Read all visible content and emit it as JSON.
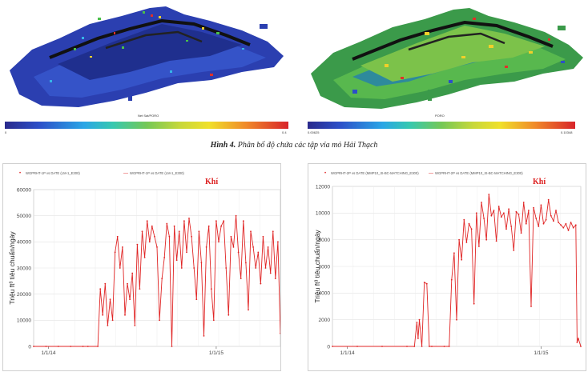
{
  "renders": {
    "left": {
      "colorbar_min": "0",
      "colorbar_max": "0.4",
      "colorbar_title": "Net Sat/PORO"
    },
    "right": {
      "colorbar_min": "0.00625",
      "colorbar_max": "0.10348",
      "colorbar_title": "PORO"
    }
  },
  "caption": {
    "label": "Hình 4.",
    "text": "Phân bố độ chứa các tập vỉa mỏ Hải Thạch"
  },
  "chart_data": [
    {
      "type": "line",
      "legend": [
        {
          "marker": "•",
          "text": "WGPRHT-1P  vs  DATE (LM-1_E300)"
        },
        {
          "marker": "—",
          "text": "WGPRHT-1P  vs  DATE (LM-1_E300)"
        }
      ],
      "annotation": "Khí",
      "ylabel": "Triệu ft³ tiêu chuẩn/ngày",
      "ylim": [
        0,
        60000
      ],
      "yticks": [
        "60000",
        "50000",
        "40000",
        "30000",
        "20000",
        "10000",
        "0"
      ],
      "xticks": [
        "1/1/14",
        "1/1/15"
      ],
      "series": [
        {
          "color": "#e02424",
          "x": [
            0,
            0.05,
            0.1,
            0.15,
            0.2,
            0.22,
            0.26,
            0.27,
            0.28,
            0.29,
            0.3,
            0.31,
            0.32,
            0.33,
            0.34,
            0.35,
            0.36,
            0.37,
            0.38,
            0.39,
            0.4,
            0.41,
            0.42,
            0.43,
            0.44,
            0.45,
            0.46,
            0.47,
            0.48,
            0.49,
            0.5,
            0.51,
            0.52,
            0.53,
            0.54,
            0.55,
            0.56,
            0.57,
            0.58,
            0.59,
            0.6,
            0.61,
            0.62,
            0.63,
            0.64,
            0.65,
            0.66,
            0.67,
            0.68,
            0.69,
            0.7,
            0.71,
            0.72,
            0.73,
            0.74,
            0.75,
            0.76,
            0.77,
            0.78,
            0.79,
            0.8,
            0.81,
            0.82,
            0.83,
            0.84,
            0.85,
            0.86,
            0.87,
            0.88,
            0.89,
            0.9,
            0.91,
            0.92,
            0.93,
            0.94,
            0.95,
            0.96,
            0.97,
            0.98,
            0.99,
            1.0
          ],
          "y": [
            0,
            0,
            0,
            0,
            0,
            0,
            0,
            22000,
            12000,
            24000,
            8000,
            18000,
            10000,
            36000,
            42000,
            30000,
            38000,
            12000,
            24000,
            18000,
            28000,
            8000,
            39000,
            22000,
            44000,
            34000,
            48000,
            40000,
            46000,
            42000,
            38000,
            10000,
            26000,
            34000,
            47000,
            42000,
            0,
            46000,
            33000,
            44000,
            30000,
            48000,
            36000,
            49000,
            42000,
            30000,
            18000,
            44000,
            32000,
            4000,
            38000,
            46000,
            22000,
            10000,
            48000,
            40000,
            46000,
            48000,
            30000,
            12000,
            42000,
            38000,
            50000,
            36000,
            26000,
            48000,
            32000,
            14000,
            44000,
            38000,
            30000,
            36000,
            24000,
            42000,
            30000,
            38000,
            28000,
            44000,
            26000,
            40000,
            5000
          ]
        }
      ]
    },
    {
      "type": "line",
      "legend": [
        {
          "marker": "•",
          "text": "WGPRHT-2P  vs  DATE (MMP10_IS-BC-MATCHING_E300)"
        },
        {
          "marker": "—",
          "text": "WGPRHT-2P  vs  DATE (MMP10_IS-BC-MATCHING_E300)"
        }
      ],
      "annotation": "Khí",
      "ylabel": "Triệu ft³ tiêu chuẩn/ngày",
      "ylim": [
        0,
        12000
      ],
      "yticks": [
        "12000",
        "10000",
        "8000",
        "6000",
        "4000",
        "2000",
        "0"
      ],
      "xticks": [
        "1/1/14",
        "1/1/15"
      ],
      "series": [
        {
          "color": "#e02424",
          "x": [
            0,
            0.1,
            0.2,
            0.3,
            0.33,
            0.34,
            0.345,
            0.35,
            0.36,
            0.37,
            0.38,
            0.39,
            0.4,
            0.45,
            0.47,
            0.48,
            0.49,
            0.5,
            0.51,
            0.52,
            0.53,
            0.54,
            0.55,
            0.56,
            0.57,
            0.58,
            0.59,
            0.6,
            0.61,
            0.62,
            0.63,
            0.64,
            0.65,
            0.66,
            0.67,
            0.68,
            0.69,
            0.7,
            0.71,
            0.72,
            0.73,
            0.74,
            0.75,
            0.76,
            0.77,
            0.78,
            0.79,
            0.8,
            0.81,
            0.82,
            0.83,
            0.84,
            0.85,
            0.86,
            0.87,
            0.88,
            0.89,
            0.9,
            0.91,
            0.92,
            0.93,
            0.94,
            0.95,
            0.96,
            0.97,
            0.98,
            0.985,
            0.99,
            1.0
          ],
          "y": [
            0,
            0,
            0,
            0,
            0,
            1800,
            600,
            2000,
            0,
            4800,
            4700,
            0,
            0,
            0,
            0,
            5000,
            7000,
            2000,
            8000,
            6500,
            9500,
            7800,
            9200,
            8800,
            3200,
            10000,
            7500,
            10800,
            9600,
            8000,
            11400,
            9800,
            10200,
            7900,
            10500,
            9700,
            10000,
            8800,
            10300,
            9000,
            7200,
            10100,
            9900,
            8500,
            10800,
            9200,
            10200,
            3000,
            10400,
            9600,
            9000,
            10600,
            9200,
            9500,
            11000,
            9800,
            9400,
            10200,
            9300,
            9100,
            8900,
            9200,
            8700,
            9300,
            8900,
            9100,
            300,
            600,
            0
          ]
        }
      ]
    }
  ]
}
